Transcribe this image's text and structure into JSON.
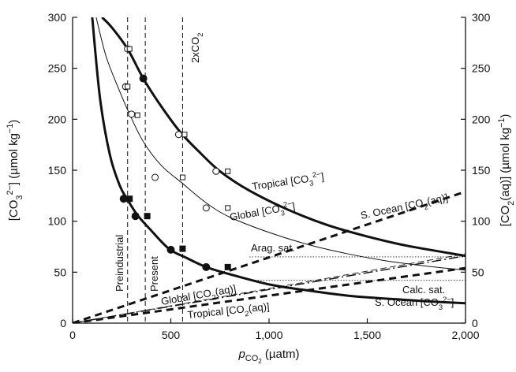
{
  "chart_data": {
    "type": "line",
    "xlim": [
      0,
      2000
    ],
    "ylim_left": [
      0,
      300
    ],
    "ylim_right": [
      0,
      300
    ],
    "x_ticks": [
      0,
      500,
      1000,
      1500,
      2000
    ],
    "x_tick_labels": [
      "0",
      "500",
      "1,000",
      "1,500",
      "2,000"
    ],
    "y_ticks": [
      0,
      50,
      100,
      150,
      200,
      250,
      300
    ],
    "y_tick_labels": [
      "0",
      "50",
      "100",
      "150",
      "200",
      "250",
      "300"
    ],
    "x_label": {
      "prefix": "p",
      "sub": "CO",
      "subsub": "2",
      "suffix": " (µatm)"
    },
    "y_label_left": {
      "a": "[CO",
      "sub": "3",
      "sup": "2−",
      "b": "] (µmol kg",
      "sup2": "−1",
      "c": ")"
    },
    "y_label_right": {
      "a": "[CO",
      "sub": "2",
      "b": "(aq)] (µmol kg",
      "sup2": "−1",
      "c": ")"
    },
    "grid": false,
    "series": [
      {
        "name": "Tropical [CO3 2−]",
        "label_parts": [
          "Tropical [CO",
          "3",
          "2−",
          "]"
        ],
        "style": "thick-solid",
        "x": [
          150,
          200,
          280,
          360,
          450,
          550,
          650,
          750,
          900,
          1100,
          1300,
          1500,
          1700,
          2000
        ],
        "y": [
          300,
          290,
          269,
          240,
          213,
          187,
          167,
          149,
          130,
          111,
          96,
          85,
          76,
          66
        ]
      },
      {
        "name": "Global [CO3 2−]",
        "label_parts": [
          "Global [CO",
          "3",
          "2−",
          "]"
        ],
        "style": "thin-solid",
        "x": [
          120,
          170,
          230,
          290,
          360,
          450,
          560,
          680,
          800,
          1000,
          1200,
          1400,
          1600,
          1800,
          2000
        ],
        "y": [
          300,
          262,
          232,
          205,
          178,
          155,
          137,
          118,
          104,
          89,
          77,
          68,
          61,
          56,
          52
        ]
      },
      {
        "name": "S. Ocean [CO3 2−]",
        "label_parts": [
          "S. Ocean [CO",
          "3",
          "2−",
          "]"
        ],
        "style": "thick-solid",
        "x": [
          100,
          140,
          190,
          240,
          280,
          330,
          390,
          490,
          580,
          680,
          800,
          1000,
          1200,
          1400,
          1600,
          1800,
          2000
        ],
        "y": [
          300,
          220,
          165,
          135,
          121,
          106,
          93,
          73,
          64,
          55,
          48,
          38,
          32,
          27,
          24,
          21.5,
          19.5
        ]
      },
      {
        "name": "S. Ocean [CO2(aq)]",
        "label_parts": [
          "S. Ocean [CO",
          "2",
          "(aq)]"
        ],
        "style": "thick-dashed",
        "x": [
          0,
          2000
        ],
        "y": [
          0,
          129
        ]
      },
      {
        "name": "Global [CO2(aq)]",
        "label_parts": [
          "Global [CO",
          "2",
          "(aq)]"
        ],
        "style": "dash-dot",
        "x": [
          0,
          2000
        ],
        "y": [
          0,
          66
        ]
      },
      {
        "name": "Tropical [CO2(aq)]",
        "label_parts": [
          "Tropical [CO",
          "2",
          "(aq)]"
        ],
        "style": "thick-dashed",
        "x": [
          0,
          2000
        ],
        "y": [
          0,
          54
        ]
      },
      {
        "name": "Global [CO2(aq)] upper",
        "style": "thin-dashed",
        "x": [
          0,
          2000
        ],
        "y": [
          0,
          68
        ]
      }
    ],
    "markers": {
      "open_circles": [
        [
          280,
          269
        ],
        [
          540,
          185
        ],
        [
          730,
          149
        ],
        [
          270,
          232
        ],
        [
          420,
          143
        ],
        [
          680,
          113
        ],
        [
          300,
          205
        ]
      ],
      "open_squares": [
        [
          290,
          269
        ],
        [
          570,
          185
        ],
        [
          790,
          149
        ],
        [
          280,
          232
        ],
        [
          560,
          143
        ],
        [
          790,
          113
        ],
        [
          330,
          204
        ]
      ],
      "filled_circles": [
        [
          360,
          240
        ],
        [
          260,
          122
        ],
        [
          320,
          105
        ],
        [
          500,
          72
        ],
        [
          680,
          55
        ]
      ],
      "filled_squares": [
        [
          290,
          122
        ],
        [
          380,
          105
        ],
        [
          560,
          73
        ],
        [
          790,
          55
        ]
      ]
    },
    "saturation_lines": [
      {
        "name": "Arag. sat.",
        "y": 65
      },
      {
        "name": "Calc. sat.",
        "y": 42
      }
    ],
    "vertical_markers": [
      {
        "name": "Preindustrial",
        "x": 280
      },
      {
        "name": "Present",
        "x": 370
      },
      {
        "name": "2xCO2",
        "x": 560
      }
    ]
  }
}
